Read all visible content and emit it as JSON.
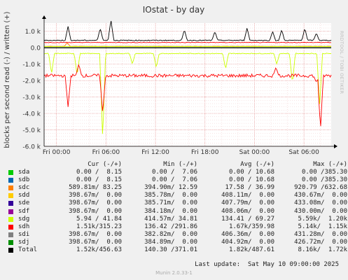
{
  "chart_data": {
    "type": "line",
    "title": "IOstat - by day",
    "ylabel": "blocks per second read (-) / written (+)",
    "watermark": "RRDTOOL / TOBI OETIKER",
    "ylim": [
      -6000,
      1500
    ],
    "yticks": [
      1000,
      0,
      -1000,
      -2000,
      -3000,
      -4000,
      -5000,
      -6000
    ],
    "ytick_labels": [
      "1.0 k",
      "0.0",
      "-1.0 k",
      "-2.0 k",
      "-3.0 k",
      "-4.0 k",
      "-5.0 k",
      "-6.0 k"
    ],
    "xlim_hours": [
      -1.5,
      33.3
    ],
    "xticks_hours": [
      0,
      6,
      12,
      18,
      24,
      30
    ],
    "xtick_labels": [
      "Fri 00:00",
      "Fri 06:00",
      "Fri 12:00",
      "Fri 18:00",
      "Sat 00:00",
      "Sat 06:00"
    ],
    "series": [
      {
        "name": "sda",
        "color": "#00CC00",
        "write_level": 0,
        "read_level": 0,
        "spikes": []
      },
      {
        "name": "sdb",
        "color": "#0066B3",
        "write_level": 0,
        "read_level": 0,
        "spikes": []
      },
      {
        "name": "sdc",
        "color": "#FF8000",
        "write_level": 90,
        "read_level": -10,
        "spikes": [
          [
            1.3,
            300
          ]
        ]
      },
      {
        "name": "sdd",
        "color": "#FFCC00",
        "write_level": 10,
        "read_level": 0,
        "spikes": []
      },
      {
        "name": "sde",
        "color": "#330099",
        "write_level": 10,
        "read_level": 0,
        "spikes": []
      },
      {
        "name": "sdf",
        "color": "#990099",
        "write_level": 10,
        "read_level": 0,
        "spikes": []
      },
      {
        "name": "sdg",
        "color": "#CCFF00",
        "write_level": 70,
        "read_level": -350,
        "spikes": [
          [
            -0.6,
            -1600
          ],
          [
            2.5,
            -1700
          ],
          [
            5.6,
            -5600
          ],
          [
            9.2,
            -1000
          ],
          [
            12.1,
            -1200
          ],
          [
            20.5,
            -1300
          ],
          [
            26.7,
            -1000
          ],
          [
            28.6,
            -2200
          ],
          [
            31.9,
            -3500
          ]
        ]
      },
      {
        "name": "sdh",
        "color": "#FF0000",
        "write_level": 320,
        "read_level": -1700,
        "spikes": [
          [
            1.4,
            -3600
          ],
          [
            2.7,
            -1000
          ],
          [
            5.6,
            -4000
          ],
          [
            26.6,
            -1200
          ],
          [
            31.5,
            -2100
          ],
          [
            32.0,
            -5000
          ]
        ]
      },
      {
        "name": "sdi",
        "color": "#808080",
        "write_level": 0,
        "read_level": 0,
        "spikes": []
      },
      {
        "name": "sdj",
        "color": "#008F00",
        "write_level": 0,
        "read_level": 0,
        "spikes": []
      },
      {
        "name": "Total",
        "color": "#000000",
        "write_level": 450,
        "read_level": 0,
        "spikes": [
          [
            1.4,
            1300
          ],
          [
            5.3,
            1200
          ],
          [
            6.6,
            1700
          ],
          [
            15.5,
            1100
          ],
          [
            19.2,
            1000
          ],
          [
            23.1,
            1200
          ],
          [
            26.2,
            1000
          ],
          [
            27.3,
            1100
          ],
          [
            30.1,
            1200
          ],
          [
            31.5,
            900
          ]
        ]
      }
    ]
  },
  "legend": {
    "headers": [
      "Cur (-/+)",
      "Min (-/+)",
      "Avg (-/+)",
      "Max (-/+)"
    ],
    "rows": [
      {
        "name": "sda",
        "color": "#00CC00",
        "cur": "0.00 /  8.15",
        "min": "0.00 /  7.06",
        "avg": "0.00 / 10.68",
        "max": "0.00 /385.30"
      },
      {
        "name": "sdb",
        "color": "#0066B3",
        "cur": "0.00 /  8.15",
        "min": "0.00 /  7.06",
        "avg": "0.00 / 10.68",
        "max": "0.00 /385.30"
      },
      {
        "name": "sdc",
        "color": "#FF8000",
        "cur": "589.81m/ 83.25",
        "min": "394.90m/ 12.59",
        "avg": "17.58 / 36.99",
        "max": "920.79 /632.68"
      },
      {
        "name": "sdd",
        "color": "#FFCC00",
        "cur": "398.67m/  0.00",
        "min": "385.78m/  0.00",
        "avg": "408.11m/  0.00",
        "max": "430.67m/  0.00"
      },
      {
        "name": "sde",
        "color": "#330099",
        "cur": "398.67m/  0.00",
        "min": "385.71m/  0.00",
        "avg": "407.79m/  0.00",
        "max": "433.08m/  0.00"
      },
      {
        "name": "sdf",
        "color": "#990099",
        "cur": "398.67m/  0.00",
        "min": "384.18m/  0.00",
        "avg": "408.06m/  0.00",
        "max": "430.00m/  0.00"
      },
      {
        "name": "sdg",
        "color": "#CCFF00",
        "cur": "5.94 / 41.84",
        "min": "414.57m/ 34.81",
        "avg": "134.41 / 69.27",
        "max": "5.59k/  1.20k"
      },
      {
        "name": "sdh",
        "color": "#FF0000",
        "cur": "1.51k/315.23",
        "min": "136.42 /291.86",
        "avg": "1.67k/359.98",
        "max": "5.14k/  1.15k"
      },
      {
        "name": "sdi",
        "color": "#808080",
        "cur": "398.67m/  0.00",
        "min": "382.82m/  0.00",
        "avg": "406.36m/  0.00",
        "max": "431.28m/  0.00"
      },
      {
        "name": "sdj",
        "color": "#008F00",
        "cur": "398.67m/  0.00",
        "min": "384.89m/  0.00",
        "avg": "404.92m/  0.00",
        "max": "426.72m/  0.00"
      },
      {
        "name": "Total",
        "color": "#000000",
        "cur": "1.52k/456.63",
        "min": "140.30 /371.01",
        "avg": "1.82k/487.61",
        "max": "8.16k/  1.72k"
      }
    ]
  },
  "footer": {
    "last_update": "Last update:  Sat May 10 09:00:00 2025",
    "munin": "Munin 2.0.33-1"
  }
}
